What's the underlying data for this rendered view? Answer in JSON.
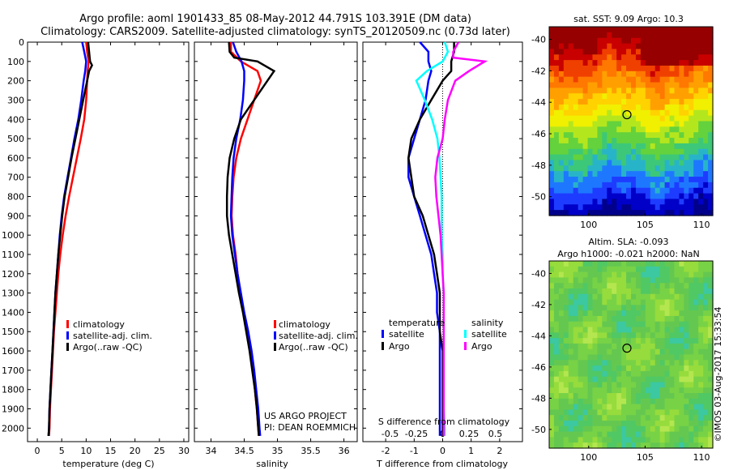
{
  "header": {
    "title_line1": "Argo profile: aoml 1901433_85 08-May-2012 44.791S 103.391E (DM data)",
    "title_line2": "Climatology: CARS2009. Satellite-adjusted climatology: synTS_20120509.nc (0.73d later)"
  },
  "colors": {
    "climatology": "#ff0000",
    "satellite": "#0000ff",
    "argo": "#000000",
    "sal_satellite": "#00ffff",
    "sal_argo": "#ff00ff"
  },
  "chart_data": [
    {
      "type": "line",
      "panel": "temperature",
      "xlabel": "temperature (deg C)",
      "xlim": [
        -2,
        31
      ],
      "xticks": [
        0,
        5,
        10,
        15,
        20,
        25,
        30
      ],
      "ylim": [
        2070,
        0
      ],
      "yticks": [
        0,
        100,
        200,
        300,
        400,
        500,
        600,
        700,
        800,
        900,
        1000,
        1100,
        1200,
        1300,
        1400,
        1500,
        1600,
        1700,
        1800,
        1900,
        2000
      ],
      "legend": [
        "climatology",
        "satellite-adj. clim.",
        "Argo(..raw -QC)"
      ],
      "legend_position": "center-right",
      "series": [
        {
          "name": "climatology",
          "color": "#ff0000",
          "depth": [
            0,
            50,
            100,
            150,
            200,
            300,
            400,
            500,
            600,
            700,
            800,
            900,
            1000,
            1100,
            1200,
            1300,
            1400,
            1500,
            1600,
            1700,
            1800,
            1900,
            2000,
            2040
          ],
          "values": [
            10.0,
            10.2,
            10.5,
            10.3,
            10.2,
            10.0,
            9.6,
            8.9,
            8.1,
            7.3,
            6.5,
            5.8,
            5.2,
            4.7,
            4.3,
            4.0,
            3.7,
            3.4,
            3.2,
            3.0,
            2.8,
            2.6,
            2.5,
            2.4
          ]
        },
        {
          "name": "satellite-adj. clim.",
          "color": "#0000ff",
          "depth": [
            0,
            50,
            100,
            150,
            200,
            300,
            400,
            500,
            600,
            700,
            800,
            900,
            1000,
            1100,
            1200,
            1300,
            1400,
            1500,
            1600,
            1700,
            1800,
            1900,
            2000,
            2040
          ],
          "values": [
            9.2,
            9.6,
            10.0,
            9.8,
            9.5,
            9.0,
            8.4,
            7.6,
            6.9,
            6.2,
            5.5,
            5.0,
            4.6,
            4.3,
            4.0,
            3.7,
            3.5,
            3.3,
            3.1,
            2.9,
            2.7,
            2.5,
            2.4,
            2.3
          ]
        },
        {
          "name": "Argo(..raw -QC)",
          "color": "#000000",
          "depth": [
            0,
            50,
            100,
            120,
            150,
            200,
            300,
            400,
            500,
            600,
            700,
            800,
            900,
            1000,
            1100,
            1200,
            1300,
            1400,
            1500,
            1600,
            1700,
            1800,
            1900,
            2000,
            2040
          ],
          "values": [
            10.4,
            10.6,
            10.8,
            11.2,
            10.6,
            10.2,
            9.4,
            8.6,
            7.8,
            7.0,
            6.3,
            5.6,
            5.1,
            4.7,
            4.3,
            4.0,
            3.7,
            3.5,
            3.3,
            3.1,
            2.9,
            2.7,
            2.5,
            2.4,
            2.3
          ]
        }
      ]
    },
    {
      "type": "line",
      "panel": "salinity",
      "xlabel": "salinity",
      "xlim": [
        33.75,
        36.2
      ],
      "xticks": [
        34,
        34.5,
        35,
        35.5,
        36
      ],
      "ylim": [
        2070,
        0
      ],
      "legend": [
        "climatology",
        "satellite-adj. clim.",
        "Argo(..raw -QC)"
      ],
      "legend_position": "center-right",
      "annotations": [
        "US ARGO PROJECT",
        "PI: DEAN ROEMMICH"
      ],
      "series": [
        {
          "name": "climatology",
          "color": "#ff0000",
          "depth": [
            0,
            50,
            100,
            150,
            200,
            300,
            400,
            500,
            600,
            700,
            800,
            900,
            1000,
            1100,
            1200,
            1300,
            1400,
            1500,
            1600,
            1700,
            1800,
            1900,
            2000,
            2040
          ],
          "values": [
            34.3,
            34.3,
            34.45,
            34.7,
            34.75,
            34.65,
            34.55,
            34.45,
            34.38,
            34.34,
            34.32,
            34.31,
            34.33,
            34.37,
            34.4,
            34.44,
            34.49,
            34.54,
            34.59,
            34.63,
            34.66,
            34.69,
            34.71,
            34.72
          ]
        },
        {
          "name": "satellite-adj. clim.",
          "color": "#0000ff",
          "depth": [
            0,
            50,
            100,
            150,
            200,
            300,
            400,
            500,
            600,
            700,
            800,
            900,
            1000,
            1100,
            1200,
            1300,
            1400,
            1500,
            1600,
            1700,
            1800,
            1900,
            2000,
            2040
          ],
          "values": [
            34.33,
            34.38,
            34.46,
            34.5,
            34.5,
            34.48,
            34.44,
            34.38,
            34.34,
            34.32,
            34.31,
            34.3,
            34.32,
            34.36,
            34.4,
            34.45,
            34.5,
            34.56,
            34.61,
            34.65,
            34.68,
            34.71,
            34.73,
            34.74
          ]
        },
        {
          "name": "Argo(..raw -QC)",
          "color": "#000000",
          "depth": [
            0,
            50,
            80,
            100,
            150,
            200,
            300,
            400,
            500,
            600,
            700,
            800,
            900,
            1000,
            1100,
            1200,
            1300,
            1400,
            1500,
            1600,
            1700,
            1800,
            1900,
            2000,
            2040
          ],
          "values": [
            34.27,
            34.28,
            34.35,
            34.7,
            34.95,
            34.85,
            34.65,
            34.45,
            34.35,
            34.28,
            34.25,
            34.24,
            34.24,
            34.27,
            34.32,
            34.37,
            34.42,
            34.48,
            34.53,
            34.58,
            34.62,
            34.66,
            34.69,
            34.71,
            34.72
          ]
        }
      ]
    },
    {
      "type": "line",
      "panel": "difference",
      "xlabel": "T difference from climatology",
      "xlabel2": "S difference from climatology",
      "xlim": [
        -2.8,
        2.8
      ],
      "xticks": [
        -2,
        -1,
        0,
        1,
        2
      ],
      "s_ticks": [
        -0.5,
        -0.25,
        0,
        0.25,
        0.5
      ],
      "s_tick_labels": [
        "-0.5",
        "-0.25",
        "0",
        "0.25",
        "0.5"
      ],
      "ylim": [
        2070,
        0
      ],
      "legend_title_t": "temperature",
      "legend_title_s": "salinity",
      "legend": [
        "satellite",
        "Argo",
        "satellite",
        "Argo"
      ],
      "series": [
        {
          "name": "satellite",
          "group": "temperature",
          "color": "#0000ff",
          "depth": [
            0,
            50,
            100,
            150,
            200,
            300,
            400,
            500,
            600,
            700,
            800,
            900,
            1000,
            1100,
            1200,
            1300,
            1400,
            1500,
            1600,
            1700,
            1800,
            1900,
            2000,
            2040
          ],
          "values": [
            -0.8,
            -0.5,
            -0.5,
            -0.4,
            -0.5,
            -0.6,
            -0.8,
            -1.0,
            -1.2,
            -1.2,
            -1.0,
            -0.8,
            -0.6,
            -0.4,
            -0.3,
            -0.2,
            -0.2,
            -0.1,
            -0.1,
            -0.1,
            -0.1,
            -0.1,
            -0.1,
            -0.1
          ]
        },
        {
          "name": "Argo",
          "group": "temperature",
          "color": "#000000",
          "depth": [
            0,
            50,
            100,
            150,
            200,
            300,
            400,
            500,
            600,
            700,
            800,
            900,
            1000,
            1100,
            1200,
            1300,
            1400,
            1500,
            1600,
            1700,
            1800,
            1900,
            2000,
            2040
          ],
          "values": [
            0.4,
            0.4,
            0.3,
            0.3,
            0.0,
            -0.4,
            -0.8,
            -1.1,
            -1.2,
            -1.1,
            -1.0,
            -0.7,
            -0.5,
            -0.3,
            -0.2,
            -0.1,
            -0.1,
            -0.1,
            0.0,
            0.0,
            0.0,
            0.0,
            0.0,
            0.0
          ]
        },
        {
          "name": "satellite",
          "group": "salinity",
          "color": "#00ffff",
          "depth": [
            0,
            50,
            100,
            150,
            200,
            300,
            400,
            500,
            600,
            700,
            800,
            900,
            1000,
            1100,
            1200,
            1300,
            1400,
            1500,
            1600,
            1700,
            1800,
            1900,
            2000,
            2040
          ],
          "values": [
            0.02,
            0.05,
            0.0,
            -0.15,
            -0.25,
            -0.17,
            -0.1,
            -0.05,
            -0.03,
            -0.02,
            -0.01,
            -0.01,
            -0.01,
            0.0,
            0.0,
            0.01,
            0.01,
            0.01,
            0.01,
            0.01,
            0.01,
            0.01,
            0.02,
            0.02
          ]
        },
        {
          "name": "Argo",
          "group": "salinity",
          "color": "#ff00ff",
          "depth": [
            0,
            50,
            80,
            100,
            150,
            200,
            300,
            400,
            500,
            600,
            700,
            800,
            900,
            1000,
            1100,
            1200,
            1300,
            1400,
            1500,
            1600,
            1700,
            1800,
            1900,
            2000,
            2040
          ],
          "values": [
            0.15,
            0.1,
            0.1,
            0.4,
            0.25,
            0.12,
            0.05,
            0.02,
            0.0,
            -0.05,
            -0.07,
            -0.06,
            -0.04,
            -0.02,
            -0.01,
            0.0,
            0.01,
            0.01,
            0.01,
            0.01,
            0.01,
            0.01,
            0.01,
            0.01,
            0.01
          ]
        }
      ]
    },
    {
      "type": "heatmap",
      "panel": "sst_map",
      "title": "sat. SST: 9.09 Argo: 10.3",
      "xticks": [
        100,
        105,
        110
      ],
      "yticks": [
        -40,
        -42,
        -44,
        -46,
        -48,
        -50
      ],
      "xlim": [
        96.5,
        111
      ],
      "ylim": [
        -51.2,
        -39.2
      ],
      "marker": {
        "lon": 103.391,
        "lat": -44.791
      }
    },
    {
      "type": "heatmap",
      "panel": "sla_map",
      "title": "Altim. SLA: -0.093",
      "subtitle": "Argo h1000: -0.021 h2000: NaN",
      "xticks": [
        100,
        105,
        110
      ],
      "yticks": [
        -40,
        -42,
        -44,
        -46,
        -48,
        -50
      ],
      "xlim": [
        96.5,
        111
      ],
      "ylim": [
        -51.2,
        -39.2
      ],
      "marker": {
        "lon": 103.391,
        "lat": -44.791
      }
    }
  ],
  "footer": {
    "credit": "©IMOS 03-Aug-2017 15:33:54"
  }
}
